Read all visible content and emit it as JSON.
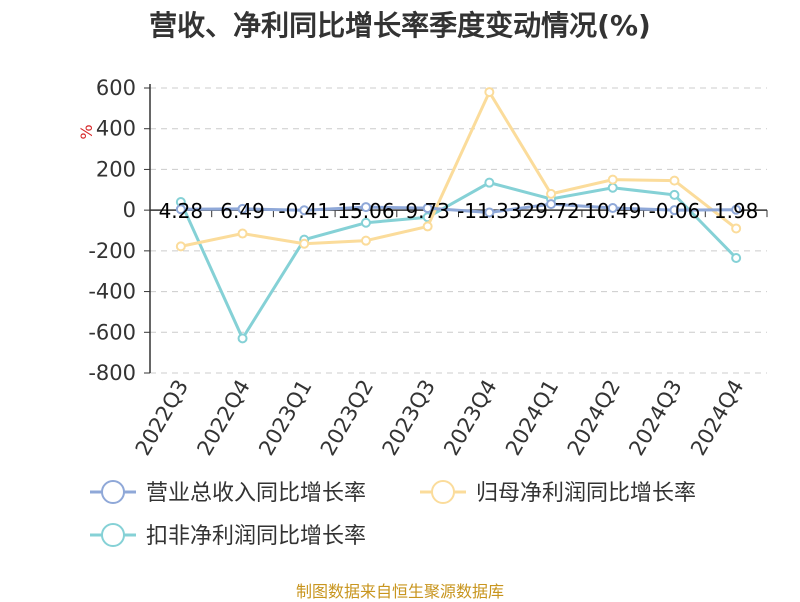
{
  "chart_data": {
    "type": "line",
    "title": "营收、净利同比增长率季度变动情况(%)",
    "ylabel": "%",
    "categories": [
      "2022Q3",
      "2022Q4",
      "2023Q1",
      "2023Q2",
      "2023Q3",
      "2023Q4",
      "2024Q1",
      "2024Q2",
      "2024Q3",
      "2024Q4"
    ],
    "ylim": [
      -800,
      600
    ],
    "yticks": [
      600,
      400,
      200,
      0,
      -200,
      -400,
      -600,
      -800
    ],
    "grid": true,
    "legend_position": "bottom",
    "series": [
      {
        "name": "营业总收入同比增长率",
        "color": "#8fa8d8",
        "values": [
          4.28,
          6.49,
          -0.41,
          15.06,
          9.73,
          -11.33,
          29.72,
          10.49,
          -0.06,
          1.98
        ],
        "labels": [
          "4.28",
          "6.49",
          "-0.41",
          "15.06",
          "9.73",
          "-11.33",
          "29.72",
          "10.49",
          "-0.06",
          "1.98"
        ]
      },
      {
        "name": "归母净利润同比增长率",
        "color": "#fbdc9b",
        "values": [
          -178,
          -115,
          -165,
          -150,
          -80,
          580,
          80,
          150,
          145,
          -90
        ]
      },
      {
        "name": "扣非净利润同比增长率",
        "color": "#85d1d6",
        "values": [
          40,
          -630,
          -145,
          -62,
          -35,
          135,
          55,
          110,
          75,
          -235
        ]
      }
    ]
  },
  "source": "制图数据来自恒生聚源数据库"
}
